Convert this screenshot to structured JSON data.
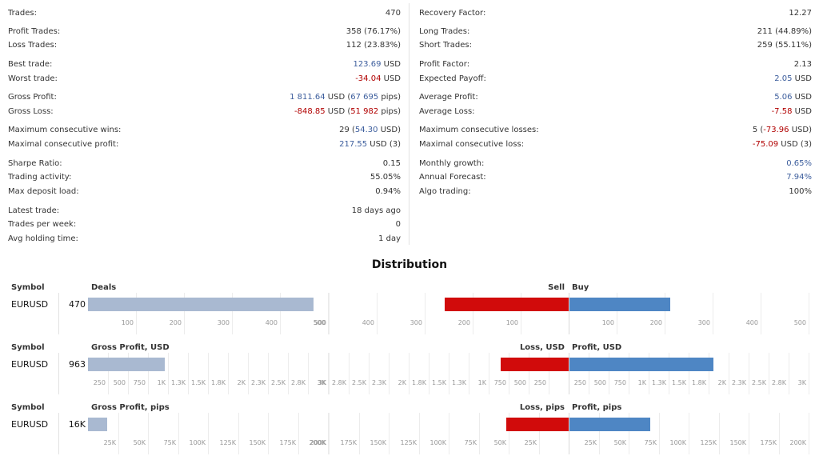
{
  "stats": {
    "left": [
      {
        "label": "Trades:",
        "value": [
          {
            "t": "470"
          }
        ]
      },
      {
        "label": "Profit Trades:",
        "value": [
          {
            "t": "358 (76.17%)"
          }
        ]
      },
      {
        "label": "Loss Trades:",
        "value": [
          {
            "t": "112 (23.83%)"
          }
        ]
      },
      {
        "label": "Best trade:",
        "value": [
          {
            "t": "123.69",
            "c": "blue"
          },
          {
            "t": " USD"
          }
        ]
      },
      {
        "label": "Worst trade:",
        "value": [
          {
            "t": "-34.04",
            "c": "red"
          },
          {
            "t": " USD"
          }
        ]
      },
      {
        "label": "Gross Profit:",
        "value": [
          {
            "t": "1 811.64",
            "c": "blue"
          },
          {
            "t": " USD ("
          },
          {
            "t": "67 695",
            "c": "blue"
          },
          {
            "t": " pips)"
          }
        ]
      },
      {
        "label": "Gross Loss:",
        "value": [
          {
            "t": "-848.85",
            "c": "red"
          },
          {
            "t": " USD ("
          },
          {
            "t": "51 982",
            "c": "red"
          },
          {
            "t": " pips)"
          }
        ]
      },
      {
        "label": "Maximum consecutive wins:",
        "value": [
          {
            "t": "29 ("
          },
          {
            "t": "54.30",
            "c": "blue"
          },
          {
            "t": " USD)"
          }
        ]
      },
      {
        "label": "Maximal consecutive profit:",
        "value": [
          {
            "t": "217.55",
            "c": "blue"
          },
          {
            "t": " USD (3)"
          }
        ]
      },
      {
        "label": "Sharpe Ratio:",
        "value": [
          {
            "t": "0.15"
          }
        ]
      },
      {
        "label": "Trading activity:",
        "value": [
          {
            "t": "55.05%"
          }
        ]
      },
      {
        "label": "Max deposit load:",
        "value": [
          {
            "t": "0.94%"
          }
        ]
      },
      {
        "label": "Latest trade:",
        "value": [
          {
            "t": "18 days ago"
          }
        ]
      },
      {
        "label": "Trades per week:",
        "value": [
          {
            "t": "0"
          }
        ]
      },
      {
        "label": "Avg holding time:",
        "value": [
          {
            "t": "1 day"
          }
        ]
      }
    ],
    "right": [
      {
        "label": "Recovery Factor:",
        "value": [
          {
            "t": "12.27"
          }
        ]
      },
      {
        "label": "Long Trades:",
        "value": [
          {
            "t": "211 (44.89%)"
          }
        ]
      },
      {
        "label": "Short Trades:",
        "value": [
          {
            "t": "259 (55.11%)"
          }
        ]
      },
      {
        "label": "Profit Factor:",
        "value": [
          {
            "t": "2.13"
          }
        ]
      },
      {
        "label": "Expected Payoff:",
        "value": [
          {
            "t": "2.05",
            "c": "blue"
          },
          {
            "t": " USD"
          }
        ]
      },
      {
        "label": "Average Profit:",
        "value": [
          {
            "t": "5.06",
            "c": "blue"
          },
          {
            "t": " USD"
          }
        ]
      },
      {
        "label": "Average Loss:",
        "value": [
          {
            "t": "-7.58",
            "c": "red"
          },
          {
            "t": " USD"
          }
        ]
      },
      {
        "label": "Maximum consecutive losses:",
        "value": [
          {
            "t": "5 ("
          },
          {
            "t": "-73.96",
            "c": "red"
          },
          {
            "t": " USD)"
          }
        ]
      },
      {
        "label": "Maximal consecutive loss:",
        "value": [
          {
            "t": "-75.09",
            "c": "red"
          },
          {
            "t": " USD (3)"
          }
        ]
      },
      {
        "label": "Monthly growth:",
        "value": [
          {
            "t": "0.65%",
            "c": "blue"
          }
        ]
      },
      {
        "label": "Annual Forecast:",
        "value": [
          {
            "t": "7.94%",
            "c": "blue"
          }
        ]
      },
      {
        "label": "Algo trading:",
        "value": [
          {
            "t": "100%"
          }
        ]
      }
    ]
  },
  "distribution": {
    "title": "Distribution",
    "sections": [
      {
        "symbol_header": "Symbol",
        "symbol": "EURUSD",
        "total_label": "470",
        "main_header": "Deals",
        "neg_header": "Sell",
        "pos_header": "Buy",
        "total_value": 470,
        "neg_value": 259,
        "pos_value": 211,
        "left_scale_max": 500,
        "dir_scale_max": 500,
        "left_ticks": [
          {
            "v": 100,
            "l": "100"
          },
          {
            "v": 200,
            "l": "200"
          },
          {
            "v": 300,
            "l": "300"
          },
          {
            "v": 400,
            "l": "400"
          },
          {
            "v": 500,
            "l": "500"
          }
        ],
        "dir_ticks": [
          {
            "v": 100,
            "l": "100"
          },
          {
            "v": 200,
            "l": "200"
          },
          {
            "v": 300,
            "l": "300"
          },
          {
            "v": 400,
            "l": "400"
          },
          {
            "v": 500,
            "l": "500"
          }
        ]
      },
      {
        "symbol_header": "Symbol",
        "symbol": "EURUSD",
        "total_label": "963",
        "main_header": "Gross Profit, USD",
        "neg_header": "Loss, USD",
        "pos_header": "Profit, USD",
        "total_value": 963,
        "neg_value": 849,
        "pos_value": 1812,
        "left_scale_max": 3000,
        "dir_scale_max": 3000,
        "left_ticks": [
          {
            "v": 250,
            "l": "250"
          },
          {
            "v": 500,
            "l": "500"
          },
          {
            "v": 750,
            "l": "750"
          },
          {
            "v": 1000,
            "l": "1K"
          },
          {
            "v": 1250,
            "l": "1.3K"
          },
          {
            "v": 1500,
            "l": "1.5K"
          },
          {
            "v": 1750,
            "l": "1.8K"
          },
          {
            "v": 2000,
            "l": "2K"
          },
          {
            "v": 2250,
            "l": "2.3K"
          },
          {
            "v": 2500,
            "l": "2.5K"
          },
          {
            "v": 2750,
            "l": "2.8K"
          },
          {
            "v": 3000,
            "l": "3K"
          }
        ],
        "dir_ticks": [
          {
            "v": 250,
            "l": "250"
          },
          {
            "v": 500,
            "l": "500"
          },
          {
            "v": 750,
            "l": "750"
          },
          {
            "v": 1000,
            "l": "1K"
          },
          {
            "v": 1250,
            "l": "1.3K"
          },
          {
            "v": 1500,
            "l": "1.5K"
          },
          {
            "v": 1750,
            "l": "1.8K"
          },
          {
            "v": 2000,
            "l": "2K"
          },
          {
            "v": 2250,
            "l": "2.3K"
          },
          {
            "v": 2500,
            "l": "2.5K"
          },
          {
            "v": 2750,
            "l": "2.8K"
          },
          {
            "v": 3000,
            "l": "3K"
          }
        ]
      },
      {
        "symbol_header": "Symbol",
        "symbol": "EURUSD",
        "total_label": "16K",
        "main_header": "Gross Profit, pips",
        "neg_header": "Loss, pips",
        "pos_header": "Profit, pips",
        "total_value": 15713,
        "neg_value": 51982,
        "pos_value": 67695,
        "left_scale_max": 200000,
        "dir_scale_max": 200000,
        "left_ticks": [
          {
            "v": 25000,
            "l": "25K"
          },
          {
            "v": 50000,
            "l": "50K"
          },
          {
            "v": 75000,
            "l": "75K"
          },
          {
            "v": 100000,
            "l": "100K"
          },
          {
            "v": 125000,
            "l": "125K"
          },
          {
            "v": 150000,
            "l": "150K"
          },
          {
            "v": 175000,
            "l": "175K"
          },
          {
            "v": 200000,
            "l": "200K"
          }
        ],
        "dir_ticks": [
          {
            "v": 25000,
            "l": "25K"
          },
          {
            "v": 50000,
            "l": "50K"
          },
          {
            "v": 75000,
            "l": "75K"
          },
          {
            "v": 100000,
            "l": "100K"
          },
          {
            "v": 125000,
            "l": "125K"
          },
          {
            "v": 150000,
            "l": "150K"
          },
          {
            "v": 175000,
            "l": "175K"
          },
          {
            "v": 200000,
            "l": "200K"
          }
        ]
      }
    ]
  },
  "colors": {
    "positive": "#3d5e9d",
    "negative": "#b10000",
    "bar_total": "#a9b9d1",
    "bar_sell": "#d10b0b",
    "bar_buy": "#4e86c4"
  }
}
